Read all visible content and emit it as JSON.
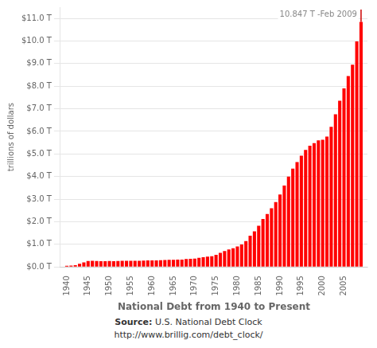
{
  "chart_data": {
    "type": "bar",
    "xlabel": "National Debt from 1940 to Present",
    "ylabel": "trillions of dollars",
    "x": [
      1940,
      1941,
      1942,
      1943,
      1944,
      1945,
      1946,
      1947,
      1948,
      1949,
      1950,
      1951,
      1952,
      1953,
      1954,
      1955,
      1956,
      1957,
      1958,
      1959,
      1960,
      1961,
      1962,
      1963,
      1964,
      1965,
      1966,
      1967,
      1968,
      1969,
      1970,
      1971,
      1972,
      1973,
      1974,
      1975,
      1976,
      1977,
      1978,
      1979,
      1980,
      1981,
      1982,
      1983,
      1984,
      1985,
      1986,
      1987,
      1988,
      1989,
      1990,
      1991,
      1992,
      1993,
      1994,
      1995,
      1996,
      1997,
      1998,
      1999,
      2000,
      2001,
      2002,
      2003,
      2004,
      2005,
      2006,
      2007,
      2008,
      2009
    ],
    "values": [
      0.051,
      0.057,
      0.079,
      0.137,
      0.201,
      0.259,
      0.269,
      0.258,
      0.252,
      0.253,
      0.257,
      0.255,
      0.259,
      0.266,
      0.271,
      0.274,
      0.273,
      0.272,
      0.276,
      0.285,
      0.286,
      0.289,
      0.298,
      0.306,
      0.312,
      0.317,
      0.32,
      0.326,
      0.348,
      0.354,
      0.371,
      0.398,
      0.427,
      0.458,
      0.475,
      0.533,
      0.62,
      0.698,
      0.771,
      0.827,
      0.907,
      0.994,
      1.142,
      1.377,
      1.572,
      1.823,
      2.125,
      2.34,
      2.601,
      2.868,
      3.206,
      3.598,
      4.002,
      4.351,
      4.643,
      4.921,
      5.182,
      5.369,
      5.478,
      5.606,
      5.629,
      5.77,
      6.198,
      6.76,
      7.355,
      7.905,
      8.451,
      8.951,
      9.986,
      10.847
    ],
    "color": "#ff0000",
    "xlim": [
      1938.5,
      2010.5
    ],
    "xticks": [
      1940,
      1945,
      1950,
      1955,
      1960,
      1965,
      1970,
      1975,
      1980,
      1985,
      1990,
      1995,
      2000,
      2005
    ],
    "ylim": [
      0,
      11.5
    ],
    "yticks": [
      {
        "value": 0,
        "label": "$0.0 T"
      },
      {
        "value": 1,
        "label": "$1.0 T"
      },
      {
        "value": 2,
        "label": "$2.0 T"
      },
      {
        "value": 3,
        "label": "$3.0 T"
      },
      {
        "value": 4,
        "label": "$4.0 T"
      },
      {
        "value": 5,
        "label": "$5.0 T"
      },
      {
        "value": 6,
        "label": "$6.0 T"
      },
      {
        "value": 7,
        "label": "$7.0 T"
      },
      {
        "value": 8,
        "label": "$8.0 T"
      },
      {
        "value": 9,
        "label": "$9.0 T"
      },
      {
        "value": 10,
        "label": "$10.0 T"
      },
      {
        "value": 11,
        "label": "$11.0 T"
      }
    ],
    "grid": "y",
    "annotations": [
      {
        "text": "10.847 T -Feb 2009",
        "x": 2009,
        "color": "#888888"
      }
    ],
    "source": {
      "label": "Source:",
      "text": "U.S. National Debt Clock",
      "url": "http://www.brillig.com/debt_clock/"
    }
  }
}
